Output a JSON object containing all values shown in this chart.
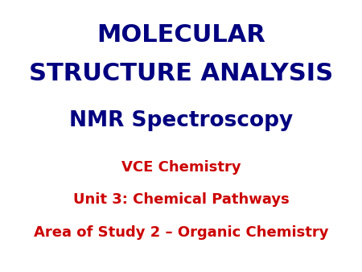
{
  "background_color": "#ffffff",
  "line1": "MOLECULAR",
  "line2": "STRUCTURE ANALYSIS",
  "line3": "NMR Spectroscopy",
  "line4": "VCE Chemistry",
  "line5": "Unit 3: Chemical Pathways",
  "line6": "Area of Study 2 – Organic Chemistry",
  "color_navy": "#000080",
  "color_red": "#cc0000",
  "font_size_line12": 22,
  "font_size_line3": 19,
  "font_size_line456": 13
}
